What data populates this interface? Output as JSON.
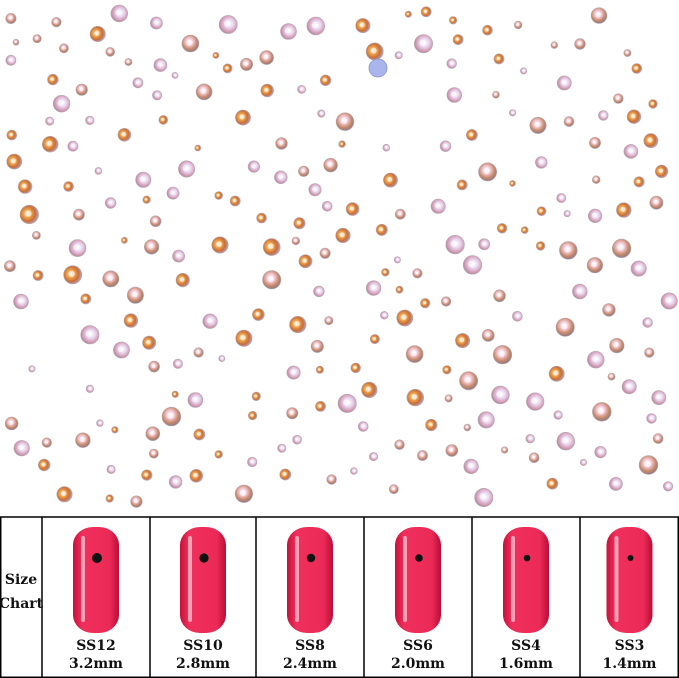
{
  "size_chart": {
    "title_lines": [
      "Size",
      "Chart"
    ],
    "items": [
      {
        "size": "SS12",
        "mm": "3.2mm"
      },
      {
        "size": "SS10",
        "mm": "2.8mm"
      },
      {
        "size": "SS8",
        "mm": "2.4mm"
      },
      {
        "size": "SS6",
        "mm": "2.0mm"
      },
      {
        "size": "SS4",
        "mm": "1.6mm"
      },
      {
        "size": "SS3",
        "mm": "1.4mm"
      }
    ]
  }
}
